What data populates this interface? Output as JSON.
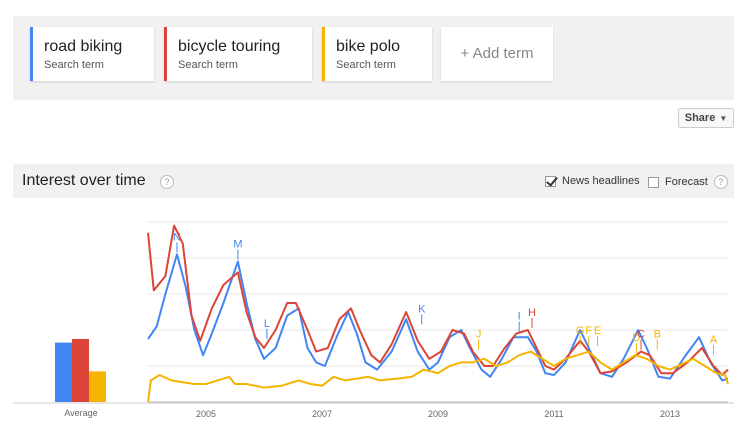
{
  "terms": [
    {
      "name": "road biking",
      "sub": "Search term",
      "color": "#4285f4"
    },
    {
      "name": "bicycle touring",
      "sub": "Search term",
      "color": "#db4437"
    },
    {
      "name": "bike polo",
      "sub": "Search term",
      "color": "#f4b400"
    }
  ],
  "add_term": "+ Add term",
  "share_label": "Share",
  "iot": {
    "title": "Interest over time",
    "news_headlines": "News headlines",
    "news_checked": true,
    "forecast": "Forecast",
    "forecast_checked": false
  },
  "chart_data": {
    "type": "line",
    "x": [
      2004.0,
      2005.0,
      2006.0,
      2007.0,
      2008.0,
      2009.0,
      2010.0,
      2011.0,
      2012.0,
      2013.0,
      2014.0
    ],
    "xlim": [
      2004.0,
      2014.0
    ],
    "ylim": [
      0,
      100
    ],
    "x_ticks": [
      "2005",
      "2007",
      "2009",
      "2011",
      "2013"
    ],
    "x_tick_values": [
      2005,
      2007,
      2009,
      2011,
      2013
    ],
    "grid": true,
    "series": [
      {
        "name": "road biking",
        "color": "#4285f4",
        "points": [
          [
            2004.0,
            35
          ],
          [
            2004.15,
            42
          ],
          [
            2004.3,
            60
          ],
          [
            2004.5,
            82
          ],
          [
            2004.65,
            64
          ],
          [
            2004.8,
            40
          ],
          [
            2004.95,
            26
          ],
          [
            2005.1,
            38
          ],
          [
            2005.3,
            55
          ],
          [
            2005.55,
            78
          ],
          [
            2005.7,
            55
          ],
          [
            2005.85,
            35
          ],
          [
            2006.0,
            24
          ],
          [
            2006.2,
            30
          ],
          [
            2006.4,
            48
          ],
          [
            2006.6,
            52
          ],
          [
            2006.75,
            30
          ],
          [
            2006.9,
            22
          ],
          [
            2007.05,
            20
          ],
          [
            2007.25,
            36
          ],
          [
            2007.45,
            50
          ],
          [
            2007.6,
            38
          ],
          [
            2007.75,
            22
          ],
          [
            2007.95,
            18
          ],
          [
            2008.2,
            28
          ],
          [
            2008.45,
            46
          ],
          [
            2008.65,
            28
          ],
          [
            2008.85,
            18
          ],
          [
            2009.0,
            22
          ],
          [
            2009.2,
            36
          ],
          [
            2009.4,
            40
          ],
          [
            2009.55,
            30
          ],
          [
            2009.75,
            18
          ],
          [
            2009.9,
            14
          ],
          [
            2010.1,
            24
          ],
          [
            2010.3,
            36
          ],
          [
            2010.55,
            36
          ],
          [
            2010.7,
            28
          ],
          [
            2010.85,
            16
          ],
          [
            2011.0,
            15
          ],
          [
            2011.2,
            22
          ],
          [
            2011.45,
            40
          ],
          [
            2011.6,
            30
          ],
          [
            2011.8,
            16
          ],
          [
            2012.0,
            14
          ],
          [
            2012.2,
            24
          ],
          [
            2012.45,
            40
          ],
          [
            2012.6,
            30
          ],
          [
            2012.8,
            14
          ],
          [
            2013.0,
            13
          ],
          [
            2013.25,
            25
          ],
          [
            2013.5,
            36
          ],
          [
            2013.7,
            22
          ],
          [
            2013.9,
            12
          ],
          [
            2014.0,
            13
          ]
        ]
      },
      {
        "name": "bicycle touring",
        "color": "#db4437",
        "points": [
          [
            2004.0,
            94
          ],
          [
            2004.1,
            62
          ],
          [
            2004.3,
            70
          ],
          [
            2004.45,
            98
          ],
          [
            2004.6,
            88
          ],
          [
            2004.75,
            48
          ],
          [
            2004.9,
            34
          ],
          [
            2005.1,
            52
          ],
          [
            2005.3,
            65
          ],
          [
            2005.55,
            72
          ],
          [
            2005.7,
            50
          ],
          [
            2005.85,
            36
          ],
          [
            2006.0,
            30
          ],
          [
            2006.2,
            40
          ],
          [
            2006.4,
            55
          ],
          [
            2006.55,
            55
          ],
          [
            2006.75,
            40
          ],
          [
            2006.9,
            28
          ],
          [
            2007.1,
            30
          ],
          [
            2007.3,
            46
          ],
          [
            2007.5,
            52
          ],
          [
            2007.65,
            40
          ],
          [
            2007.85,
            26
          ],
          [
            2008.0,
            22
          ],
          [
            2008.2,
            32
          ],
          [
            2008.45,
            50
          ],
          [
            2008.65,
            34
          ],
          [
            2008.85,
            24
          ],
          [
            2009.05,
            28
          ],
          [
            2009.25,
            40
          ],
          [
            2009.45,
            38
          ],
          [
            2009.6,
            28
          ],
          [
            2009.8,
            20
          ],
          [
            2009.95,
            20
          ],
          [
            2010.15,
            30
          ],
          [
            2010.35,
            38
          ],
          [
            2010.55,
            40
          ],
          [
            2010.7,
            30
          ],
          [
            2010.85,
            20
          ],
          [
            2011.0,
            18
          ],
          [
            2011.2,
            24
          ],
          [
            2011.45,
            34
          ],
          [
            2011.6,
            28
          ],
          [
            2011.8,
            16
          ],
          [
            2012.0,
            17
          ],
          [
            2012.25,
            22
          ],
          [
            2012.5,
            28
          ],
          [
            2012.65,
            26
          ],
          [
            2012.85,
            16
          ],
          [
            2013.05,
            16
          ],
          [
            2013.3,
            22
          ],
          [
            2013.55,
            30
          ],
          [
            2013.75,
            20
          ],
          [
            2013.9,
            15
          ],
          [
            2014.0,
            18
          ]
        ]
      },
      {
        "name": "bike polo",
        "color": "#f4b400",
        "points": [
          [
            2004.0,
            0
          ],
          [
            2004.05,
            12
          ],
          [
            2004.2,
            15
          ],
          [
            2004.4,
            12
          ],
          [
            2004.6,
            11
          ],
          [
            2004.8,
            10
          ],
          [
            2005.0,
            10
          ],
          [
            2005.2,
            12
          ],
          [
            2005.4,
            14
          ],
          [
            2005.5,
            10
          ],
          [
            2005.7,
            10
          ],
          [
            2006.0,
            8
          ],
          [
            2006.3,
            9
          ],
          [
            2006.6,
            12
          ],
          [
            2006.8,
            10
          ],
          [
            2007.0,
            9
          ],
          [
            2007.2,
            14
          ],
          [
            2007.4,
            12
          ],
          [
            2007.6,
            13
          ],
          [
            2007.8,
            14
          ],
          [
            2008.0,
            12
          ],
          [
            2008.3,
            13
          ],
          [
            2008.55,
            14
          ],
          [
            2008.75,
            18
          ],
          [
            2009.0,
            16
          ],
          [
            2009.2,
            20
          ],
          [
            2009.4,
            22
          ],
          [
            2009.6,
            22
          ],
          [
            2009.8,
            24
          ],
          [
            2010.0,
            20
          ],
          [
            2010.2,
            22
          ],
          [
            2010.4,
            26
          ],
          [
            2010.6,
            28
          ],
          [
            2010.8,
            24
          ],
          [
            2011.0,
            20
          ],
          [
            2011.2,
            24
          ],
          [
            2011.4,
            26
          ],
          [
            2011.6,
            28
          ],
          [
            2011.8,
            22
          ],
          [
            2012.0,
            18
          ],
          [
            2012.2,
            22
          ],
          [
            2012.4,
            26
          ],
          [
            2012.6,
            24
          ],
          [
            2012.8,
            20
          ],
          [
            2013.0,
            18
          ],
          [
            2013.2,
            21
          ],
          [
            2013.4,
            24
          ],
          [
            2013.6,
            20
          ],
          [
            2013.8,
            16
          ],
          [
            2013.95,
            15
          ],
          [
            2014.0,
            10
          ]
        ]
      }
    ],
    "averages": [
      {
        "name": "road biking",
        "value": 33,
        "color": "#4285f4"
      },
      {
        "name": "bicycle touring",
        "value": 35,
        "color": "#db4437"
      },
      {
        "name": "bike polo",
        "value": 17,
        "color": "#f4b400"
      }
    ],
    "average_label": "Average",
    "annotations": [
      {
        "letter": "N",
        "x": 2004.5,
        "y": 82,
        "color": "#4285f4"
      },
      {
        "letter": "M",
        "x": 2005.55,
        "y": 78,
        "color": "#4285f4"
      },
      {
        "letter": "L",
        "x": 2006.05,
        "y": 34,
        "color": "#4285f4"
      },
      {
        "letter": "K",
        "x": 2008.72,
        "y": 42,
        "color": "#4285f4"
      },
      {
        "letter": "J",
        "x": 2009.7,
        "y": 28,
        "color": "#f4b400"
      },
      {
        "letter": "I",
        "x": 2010.4,
        "y": 38,
        "color": "#4285f4"
      },
      {
        "letter": "H",
        "x": 2010.62,
        "y": 40,
        "color": "#db4437"
      },
      {
        "letter": "G",
        "x": 2011.45,
        "y": 30,
        "color": "#f4b400"
      },
      {
        "letter": "F",
        "x": 2011.6,
        "y": 30,
        "color": "#f4b400"
      },
      {
        "letter": "E",
        "x": 2011.75,
        "y": 30,
        "color": "#f4b400"
      },
      {
        "letter": "D",
        "x": 2012.42,
        "y": 26,
        "color": "#f4b400"
      },
      {
        "letter": "C",
        "x": 2012.5,
        "y": 28,
        "color": "#db4437"
      },
      {
        "letter": "B",
        "x": 2012.78,
        "y": 28,
        "color": "#f4b400"
      },
      {
        "letter": "A",
        "x": 2013.75,
        "y": 25,
        "color": "#f4b400"
      }
    ]
  }
}
